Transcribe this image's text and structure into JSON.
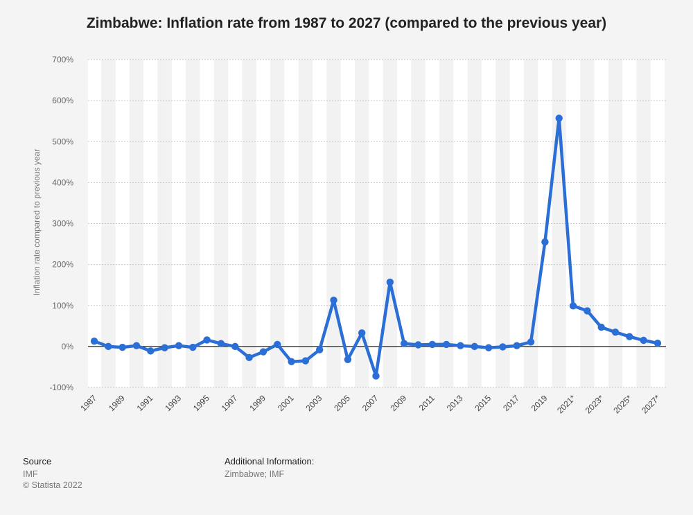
{
  "chart_data": {
    "type": "line",
    "title": "Zimbabwe: Inflation rate from 1987 to 2027 (compared to the previous year)",
    "ylabel": "Inflation rate compared to previous year",
    "xlabel": "",
    "ylim": [
      -100,
      700
    ],
    "y_ticks": [
      -100,
      0,
      100,
      200,
      300,
      400,
      500,
      600,
      700
    ],
    "y_tick_labels": [
      "-100%",
      "0%",
      "100%",
      "200%",
      "300%",
      "400%",
      "500%",
      "600%",
      "700%"
    ],
    "grid": true,
    "legend": "none",
    "color": "#2b6fd6",
    "categories": [
      "1987",
      "1988",
      "1989",
      "1990",
      "1991",
      "1992",
      "1993",
      "1994",
      "1995",
      "1996",
      "1997",
      "1998",
      "1999",
      "2000",
      "2001",
      "2002",
      "2003",
      "2004",
      "2005",
      "2006",
      "2007",
      "2008",
      "2009",
      "2010",
      "2011",
      "2012",
      "2013",
      "2014",
      "2015",
      "2016",
      "2017",
      "2018",
      "2019",
      "2020",
      "2021*",
      "2022*",
      "2023*",
      "2024*",
      "2025*",
      "2026*",
      "2027*"
    ],
    "x_tick_labels": [
      "1987",
      "1989",
      "1991",
      "1993",
      "1995",
      "1997",
      "1999",
      "2001",
      "2003",
      "2005",
      "2007",
      "2009",
      "2011",
      "2013",
      "2015",
      "2017",
      "2019",
      "2021*",
      "2023*",
      "2025*",
      "2027*"
    ],
    "values": [
      13,
      0,
      -2,
      2,
      -11,
      -3,
      2,
      -2,
      16,
      7,
      0,
      -27,
      -13,
      5,
      -37,
      -35,
      -8,
      113,
      -32,
      33,
      -72,
      157,
      7,
      4,
      5,
      5,
      2,
      0,
      -3,
      -1,
      2,
      11,
      255,
      557,
      99,
      87,
      47,
      35,
      24,
      15,
      8
    ]
  },
  "footer": {
    "source_heading": "Source",
    "source_lines": [
      "IMF",
      "© Statista 2022"
    ],
    "additional_heading": "Additional Information:",
    "additional_line": "Zimbabwe; IMF"
  }
}
